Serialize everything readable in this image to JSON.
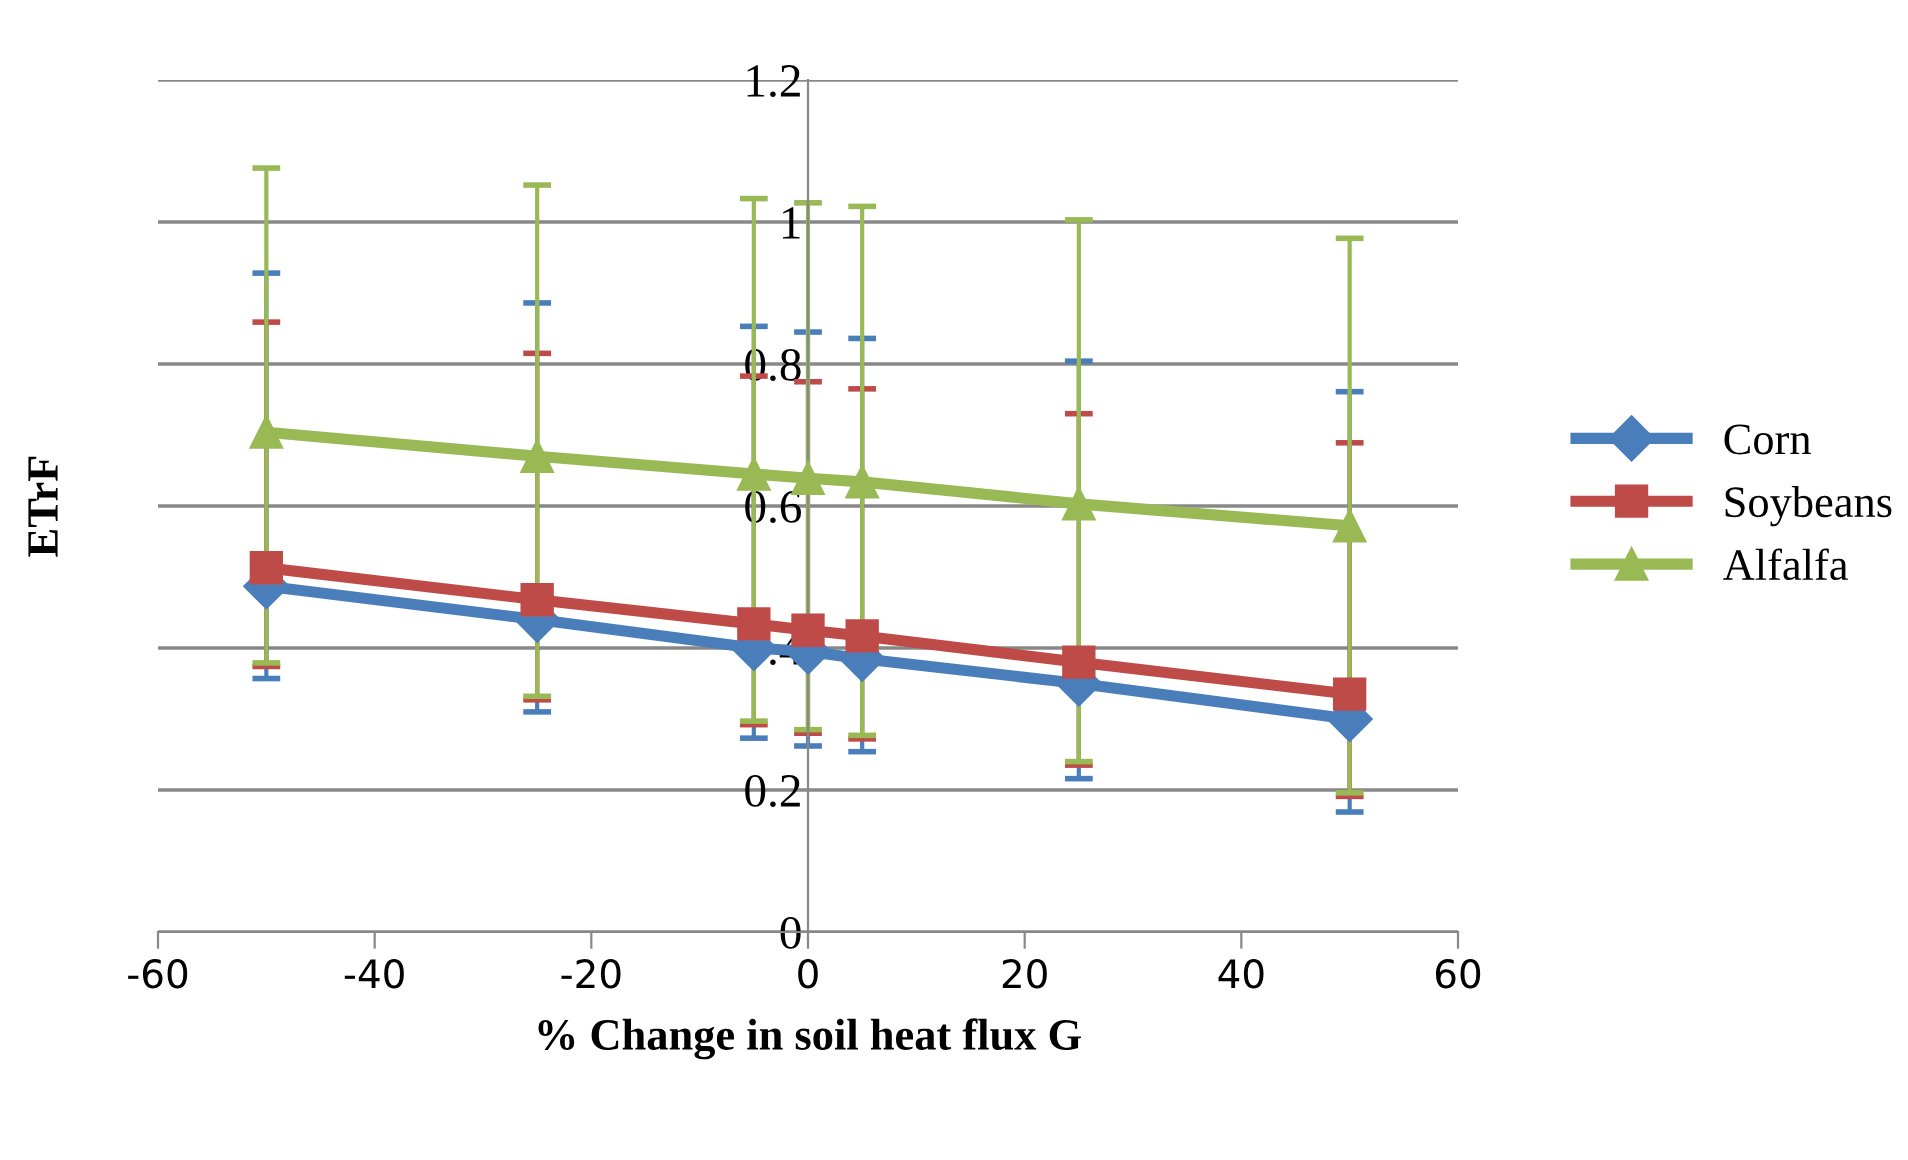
{
  "chart_data": {
    "type": "line",
    "xlabel": "% Change in soil heat flux G",
    "ylabel": "ETrF",
    "x": [
      -50,
      -25,
      -5,
      0,
      5,
      25,
      50
    ],
    "series": [
      {
        "name": "Corn",
        "color": "#4a7ebb",
        "marker": "diamond",
        "values": [
          0.487,
          0.44,
          0.4,
          0.395,
          0.385,
          0.35,
          0.3
        ],
        "errors": [
          [
            0.357,
            0.928
          ],
          [
            0.31,
            0.886
          ],
          [
            0.273,
            0.853
          ],
          [
            0.262,
            0.845
          ],
          [
            0.254,
            0.836
          ],
          [
            0.216,
            0.804
          ],
          [
            0.169,
            0.761
          ]
        ]
      },
      {
        "name": "Soybeans",
        "color": "#be4b48",
        "marker": "square",
        "values": [
          0.513,
          0.468,
          0.434,
          0.425,
          0.417,
          0.38,
          0.335
        ],
        "errors": [
          [
            0.374,
            0.859
          ],
          [
            0.327,
            0.815
          ],
          [
            0.292,
            0.783
          ],
          [
            0.28,
            0.775
          ],
          [
            0.272,
            0.765
          ],
          [
            0.235,
            0.73
          ],
          [
            0.191,
            0.689
          ]
        ]
      },
      {
        "name": "Alfalfa",
        "color": "#98b954",
        "marker": "triangle",
        "values": [
          0.704,
          0.67,
          0.645,
          0.639,
          0.634,
          0.603,
          0.572
        ],
        "errors": [
          [
            0.379,
            1.076
          ],
          [
            0.332,
            1.052
          ],
          [
            0.297,
            1.033
          ],
          [
            0.285,
            1.027
          ],
          [
            0.277,
            1.022
          ],
          [
            0.24,
            1.003
          ],
          [
            0.196,
            0.977
          ]
        ]
      }
    ],
    "xlim": [
      -60,
      60
    ],
    "xticks": [
      -60,
      -40,
      -20,
      0,
      20,
      40,
      60
    ],
    "ylim": [
      0,
      1.2
    ],
    "yticks": [
      0,
      0.2,
      0.4,
      0.6,
      0.8,
      1,
      1.2
    ],
    "grid": "y",
    "legend": "right",
    "line_style": "solid"
  }
}
